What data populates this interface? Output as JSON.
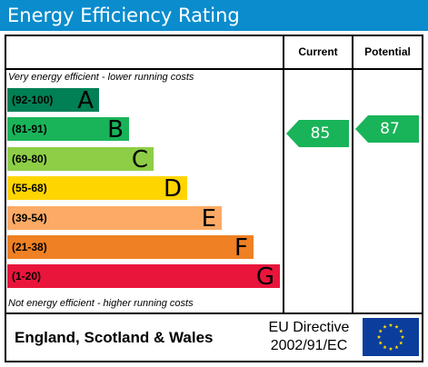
{
  "title": "Energy Efficiency Rating",
  "columns": {
    "current": "Current",
    "potential": "Potential"
  },
  "notes": {
    "top": "Very energy efficient - lower running costs",
    "bottom": "Not energy efficient - higher running costs"
  },
  "bands": [
    {
      "range": "(92-100)",
      "letter": "A",
      "color": "#008054"
    },
    {
      "range": "(81-91)",
      "letter": "B",
      "color": "#19b459"
    },
    {
      "range": "(69-80)",
      "letter": "C",
      "color": "#8dce46"
    },
    {
      "range": "(55-68)",
      "letter": "D",
      "color": "#ffd500"
    },
    {
      "range": "(39-54)",
      "letter": "E",
      "color": "#fcaa65"
    },
    {
      "range": "(21-38)",
      "letter": "F",
      "color": "#ef8023"
    },
    {
      "range": "(1-20)",
      "letter": "G",
      "color": "#e9153b"
    }
  ],
  "ratings": {
    "current": {
      "value": "85",
      "color": "#19b459"
    },
    "potential": {
      "value": "87",
      "color": "#19b459"
    }
  },
  "footer": {
    "region": "England, Scotland & Wales",
    "directive_line1": "EU Directive",
    "directive_line2": "2002/91/EC"
  }
}
